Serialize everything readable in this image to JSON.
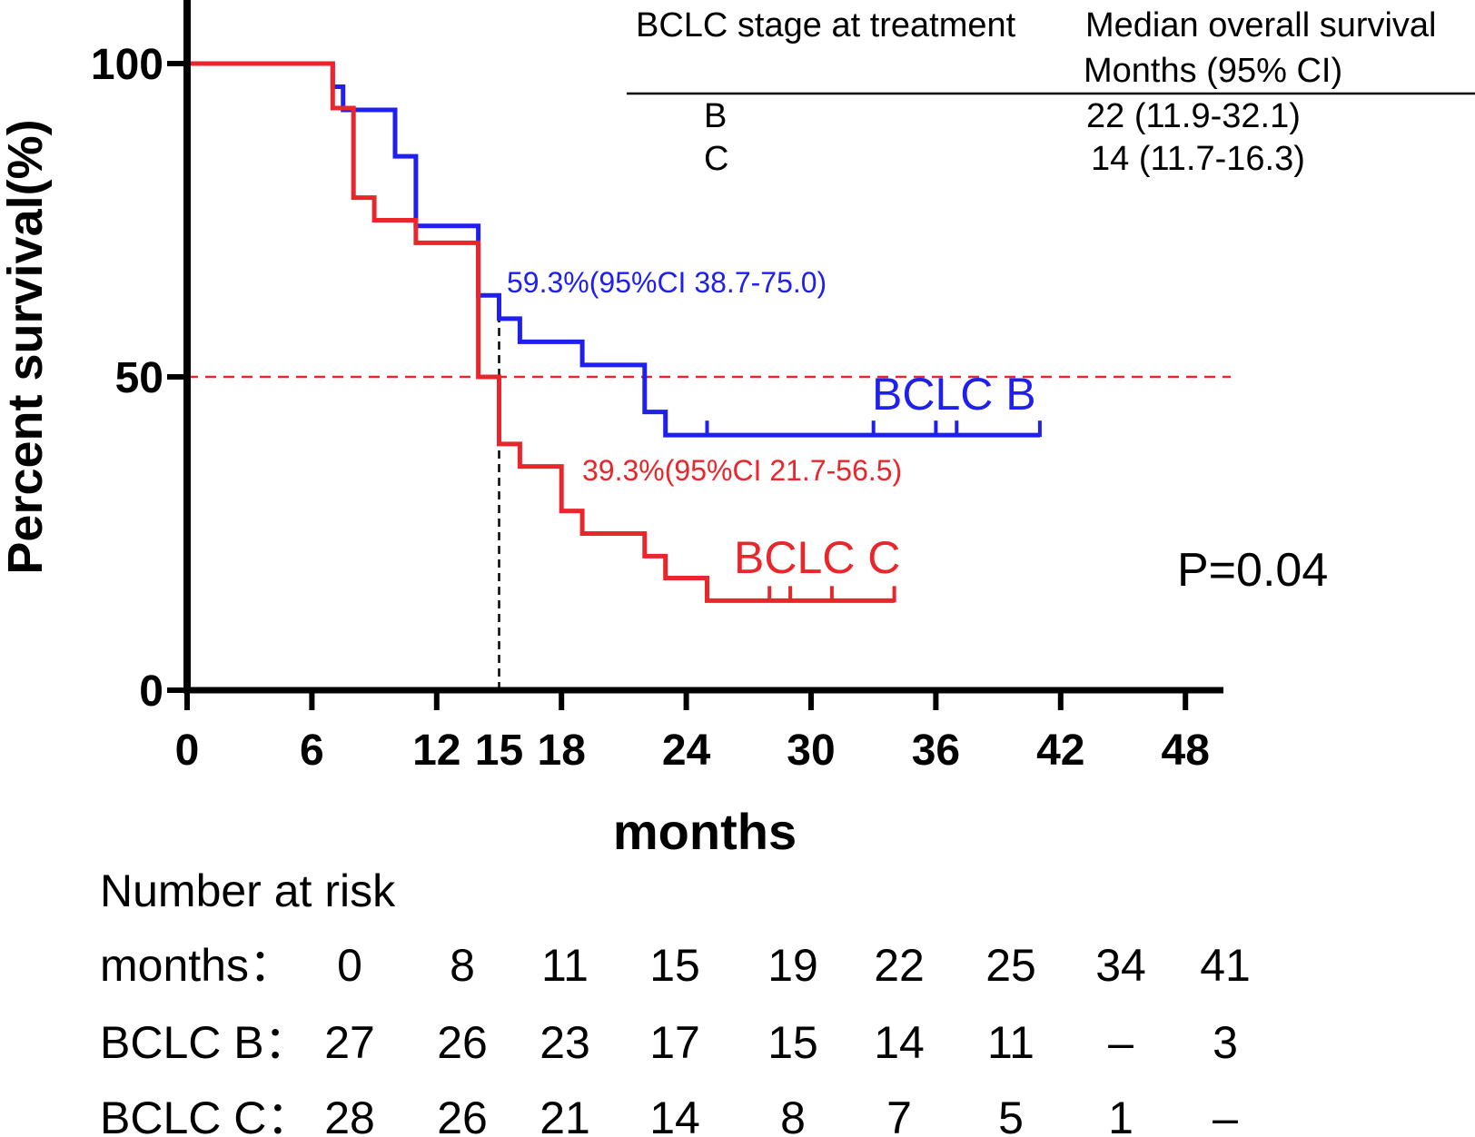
{
  "chart_data": {
    "type": "line",
    "subtype": "kaplan-meier",
    "title": "",
    "xlabel": "months",
    "ylabel": "Percent survival(%)",
    "xlim": [
      0,
      50
    ],
    "ylim": [
      0,
      100
    ],
    "x_ticks": [
      0,
      6,
      12,
      15,
      18,
      24,
      30,
      36,
      42,
      48
    ],
    "x_tick_labels": [
      "0",
      "6",
      "12",
      "15",
      "18",
      "24",
      "30",
      "36",
      "42",
      "48"
    ],
    "highlight_tick": "15",
    "y_ticks": [
      0,
      50,
      100
    ],
    "y_tick_labels": [
      "0",
      "50",
      "100"
    ],
    "reference_line": {
      "y": 50,
      "style": "dashed",
      "color": "#e8262b"
    },
    "reference_vline": {
      "x": 15,
      "y_from": 0,
      "y_to": 62,
      "style": "dashed",
      "color": "#000000"
    },
    "series": [
      {
        "name": "BCLC B",
        "color": "#1f1ff0",
        "steps": [
          [
            0,
            100
          ],
          [
            7,
            96.3
          ],
          [
            7.5,
            96.3
          ],
          [
            7.5,
            92.6
          ],
          [
            10,
            85.2
          ],
          [
            11,
            74.1
          ],
          [
            14,
            63.0
          ],
          [
            15,
            59.3
          ],
          [
            16,
            55.6
          ],
          [
            19,
            51.9
          ],
          [
            22,
            44.4
          ],
          [
            23,
            40.7
          ],
          [
            41,
            40.7
          ]
        ],
        "censor_marks": [
          25,
          33,
          36,
          37,
          41
        ],
        "annotation": "59.3%(95%CI 38.7-75.0)",
        "end_label": "BCLC B"
      },
      {
        "name": "BCLC C",
        "color": "#e8262b",
        "steps": [
          [
            0,
            100
          ],
          [
            7,
            92.9
          ],
          [
            8,
            78.6
          ],
          [
            9,
            75.0
          ],
          [
            11,
            71.4
          ],
          [
            14,
            50.0
          ],
          [
            15,
            39.3
          ],
          [
            16,
            35.7
          ],
          [
            18,
            28.6
          ],
          [
            19,
            25.0
          ],
          [
            22,
            21.4
          ],
          [
            23,
            17.9
          ],
          [
            25,
            14.3
          ],
          [
            34,
            14.3
          ]
        ],
        "censor_marks": [
          28,
          29,
          31,
          34
        ],
        "annotation": "39.3%(95%CI 21.7-56.5)",
        "end_label": "BCLC C"
      }
    ],
    "p_value": "P=0.04",
    "median_table": {
      "header_col1": "BCLC stage at treatment",
      "header_col2_line1": "Median overall survival",
      "header_col2_line2": "Months (95% CI)",
      "rows": [
        {
          "stage": "B",
          "value": "22 (11.9-32.1)"
        },
        {
          "stage": "C",
          "value": "14 (11.7-16.3)"
        }
      ]
    },
    "risk_table": {
      "title": "Number at risk",
      "header_label": "months：",
      "months": [
        "0",
        "8",
        "11",
        "15",
        "19",
        "22",
        "25",
        "34",
        "41"
      ],
      "rows": [
        {
          "label": "BCLC B：",
          "values": [
            "27",
            "26",
            "23",
            "17",
            "15",
            "14",
            "11",
            "–",
            "3"
          ]
        },
        {
          "label": "BCLC C：",
          "values": [
            "28",
            "26",
            "21",
            "14",
            "8",
            "7",
            "5",
            "1",
            "–"
          ]
        }
      ]
    }
  }
}
